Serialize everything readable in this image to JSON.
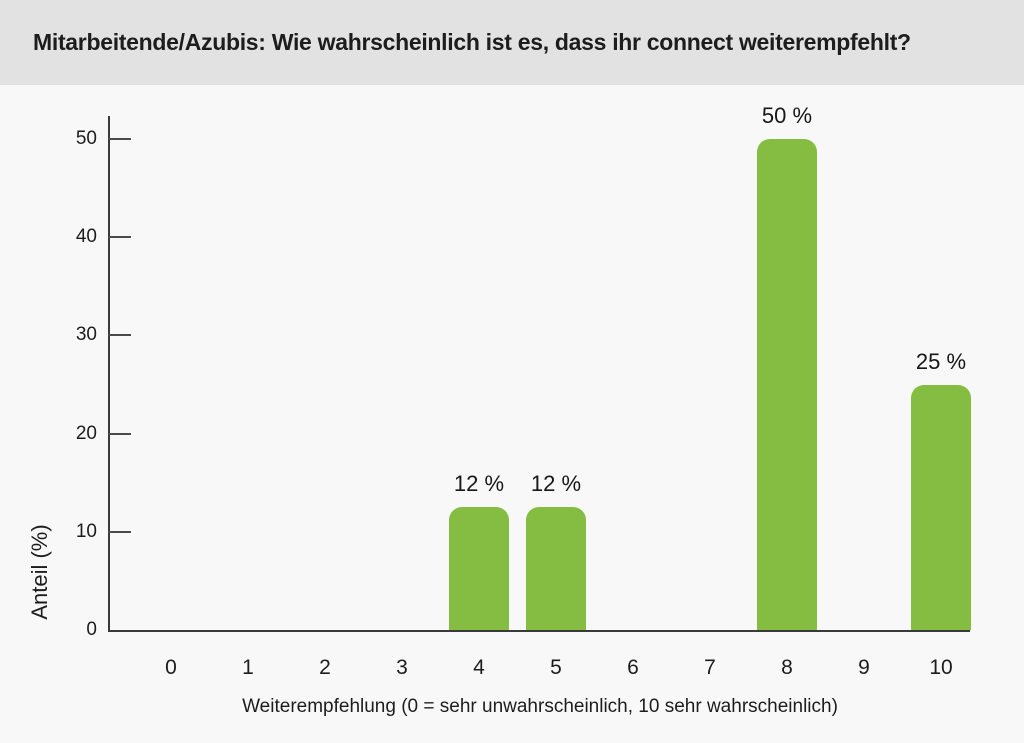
{
  "header": {
    "title": "Mitarbeitende/Azubis: Wie wahrscheinlich ist es, dass ihr connect weiterempfehlt?"
  },
  "chart_data": {
    "type": "bar",
    "title": "Mitarbeitende/Azubis: Wie wahrscheinlich ist es, dass ihr connect weiterempfehlt?",
    "categories": [
      "0",
      "1",
      "2",
      "3",
      "4",
      "5",
      "6",
      "7",
      "8",
      "9",
      "10"
    ],
    "values": [
      0,
      0,
      0,
      0,
      12.5,
      12.5,
      0,
      0,
      50,
      0,
      25
    ],
    "bar_labels": [
      "",
      "",
      "",
      "",
      "12 %",
      "12 %",
      "",
      "",
      "50 %",
      "",
      "25 %"
    ],
    "xlabel": "Weiterempfehlung (0 = sehr unwahrscheinlich, 10 sehr wahrscheinlich)",
    "ylabel": "Anteil (%)",
    "ylim": [
      0,
      50
    ],
    "y_ticks": [
      0,
      10,
      20,
      30,
      40,
      50
    ],
    "grid": false,
    "legend": false,
    "bar_color": "#84bd42"
  },
  "colors": {
    "header_bg": "#e2e2e2",
    "page_bg": "#f8f8f8",
    "bar_green": "#84bd42",
    "axis": "#3a3a3a",
    "text": "#1d1d1d"
  }
}
